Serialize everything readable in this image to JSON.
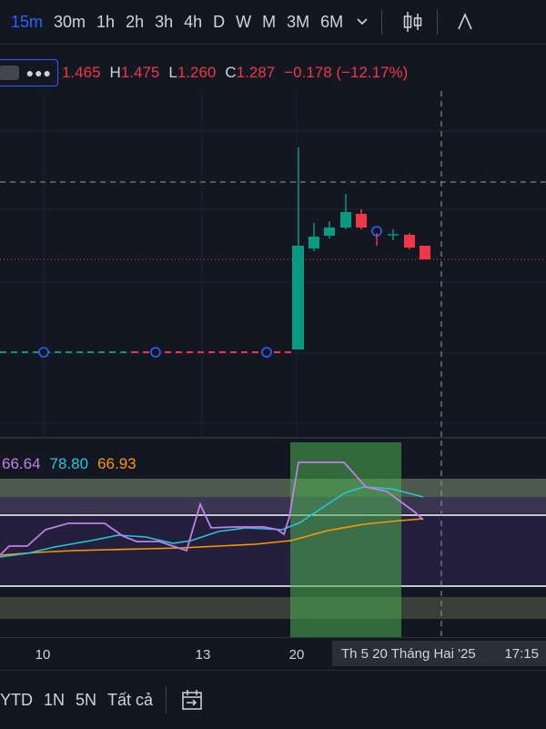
{
  "toolbar": {
    "timeframes": [
      "15m",
      "30m",
      "1h",
      "2h",
      "3h",
      "4h",
      "D",
      "W",
      "M",
      "3M",
      "6M"
    ],
    "active": "15m"
  },
  "ohlc": {
    "o": "1.465",
    "h_label": "H",
    "h": "1.475",
    "l_label": "L",
    "l": "1.260",
    "c_label": "C",
    "c": "1.287",
    "change": "−0.178 (−12.17%)",
    "color": "#f23645"
  },
  "indicator": {
    "v1": "66.64",
    "v2": "78.80",
    "v3": "66.93",
    "colors": [
      "#c27ee8",
      "#26c6da",
      "#ff9800"
    ]
  },
  "xaxis": {
    "ticks": [
      "10",
      "13",
      "20"
    ],
    "crosshair_date": "Th 5 20 Tháng Hai '25",
    "crosshair_time": "17:15"
  },
  "bottom": {
    "ranges": [
      "YTD",
      "1N",
      "5N",
      "Tất cả"
    ]
  },
  "colors": {
    "background": "#131722",
    "up": "#089981",
    "down": "#f23645",
    "accent": "#2962ff"
  }
}
